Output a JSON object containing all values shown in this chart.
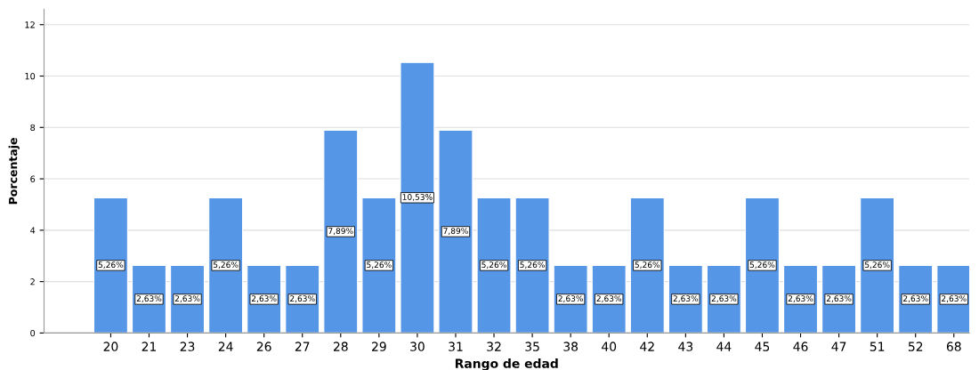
{
  "chart_data": {
    "type": "bar",
    "xlabel": "Rango de edad",
    "ylabel": "Porcentaje",
    "categories": [
      "20",
      "21",
      "23",
      "24",
      "26",
      "27",
      "28",
      "29",
      "30",
      "31",
      "32",
      "35",
      "38",
      "40",
      "42",
      "43",
      "44",
      "45",
      "46",
      "47",
      "51",
      "52",
      "68"
    ],
    "values": [
      5.26,
      2.63,
      2.63,
      5.26,
      2.63,
      2.63,
      7.89,
      5.26,
      10.53,
      7.89,
      5.26,
      5.26,
      2.63,
      2.63,
      5.26,
      2.63,
      2.63,
      5.26,
      2.63,
      2.63,
      5.26,
      2.63,
      2.63
    ],
    "value_labels": [
      "5,26%",
      "2,63%",
      "2,63%",
      "5,26%",
      "2,63%",
      "2,63%",
      "7,89%",
      "5,26%",
      "10,53%",
      "7,89%",
      "5,26%",
      "5,26%",
      "2,63%",
      "2,63%",
      "5,26%",
      "2,63%",
      "2,63%",
      "5,26%",
      "2,63%",
      "2,63%",
      "5,26%",
      "2,63%",
      "2,63%"
    ],
    "color": "#5596e6",
    "ylim": [
      0,
      12.6
    ],
    "yticks": [
      0,
      2,
      4,
      6,
      8,
      10,
      12
    ],
    "grid": "y"
  }
}
